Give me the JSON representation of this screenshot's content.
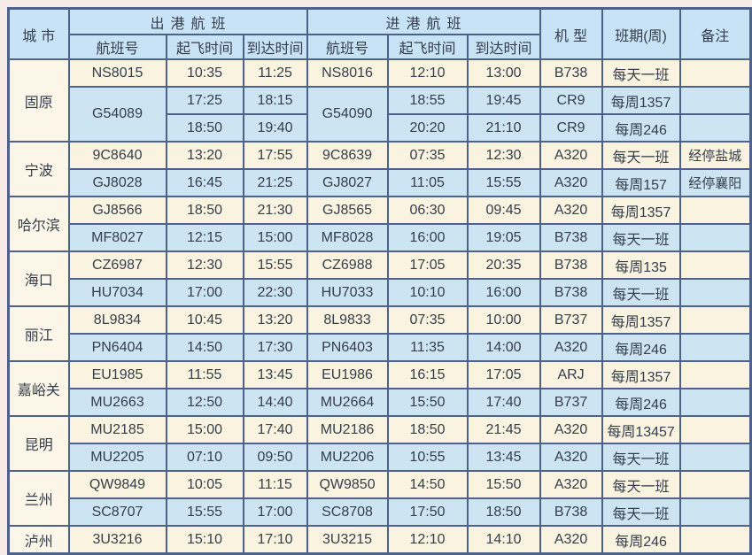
{
  "colors": {
    "border": "#4d6289",
    "header_bg": "#c9e3f6",
    "row_cream_bg": "#f9f3df",
    "row_blue_bg": "#cde4f3",
    "city_col_bg": "#fbf6e7",
    "text": "#343e4c",
    "page_bg": "#f5eae5"
  },
  "table": {
    "headers": {
      "city": "城市",
      "departure_group": "出港航班",
      "arrival_group": "进港航班",
      "flight_no": "航班号",
      "takeoff_time": "起飞时间",
      "arrival_time": "到达时间",
      "aircraft": "机型",
      "schedule": "班期(周)",
      "remarks": "备注"
    },
    "cities": [
      {
        "name": "固原",
        "flights": [
          {
            "out": [
              "NS8015",
              "10:35",
              "11:25"
            ],
            "in": [
              "NS8016",
              "12:10",
              "13:00"
            ],
            "type": "B738",
            "days": "每天一班",
            "note": ""
          },
          {
            "out": [
              "G54089",
              "17:25",
              "18:15"
            ],
            "in": [
              "G54090",
              "18:55",
              "19:45"
            ],
            "type": "CR9",
            "days": "每周1357",
            "note": "",
            "flight_rowspan": 2
          },
          {
            "out": [
              null,
              "18:50",
              "19:40"
            ],
            "in": [
              null,
              "20:20",
              "21:10"
            ],
            "type": "CR9",
            "days": "每周246",
            "note": ""
          }
        ]
      },
      {
        "name": "宁波",
        "flights": [
          {
            "out": [
              "9C8640",
              "13:20",
              "17:55"
            ],
            "in": [
              "9C8639",
              "07:35",
              "12:30"
            ],
            "type": "A320",
            "days": "每天一班",
            "note": "经停盐城"
          },
          {
            "out": [
              "GJ8028",
              "16:45",
              "21:25"
            ],
            "in": [
              "GJ8027",
              "11:05",
              "15:55"
            ],
            "type": "A320",
            "days": "每周157",
            "note": "经停襄阳"
          }
        ]
      },
      {
        "name": "哈尔滨",
        "flights": [
          {
            "out": [
              "GJ8566",
              "18:50",
              "21:30"
            ],
            "in": [
              "GJ8565",
              "06:30",
              "09:45"
            ],
            "type": "A320",
            "days": "每周1357",
            "note": ""
          },
          {
            "out": [
              "MF8027",
              "12:15",
              "15:00"
            ],
            "in": [
              "MF8028",
              "16:00",
              "19:05"
            ],
            "type": "B738",
            "days": "每天一班",
            "note": ""
          }
        ]
      },
      {
        "name": "海口",
        "flights": [
          {
            "out": [
              "CZ6987",
              "12:30",
              "15:55"
            ],
            "in": [
              "CZ6988",
              "17:05",
              "20:35"
            ],
            "type": "B738",
            "days": "每周135",
            "note": ""
          },
          {
            "out": [
              "HU7034",
              "17:00",
              "22:30"
            ],
            "in": [
              "HU7033",
              "10:10",
              "16:00"
            ],
            "type": "B738",
            "days": "每天一班",
            "note": ""
          }
        ]
      },
      {
        "name": "丽江",
        "flights": [
          {
            "out": [
              "8L9834",
              "10:45",
              "13:20"
            ],
            "in": [
              "8L9833",
              "07:35",
              "10:00"
            ],
            "type": "B737",
            "days": "每周1357",
            "note": ""
          },
          {
            "out": [
              "PN6404",
              "14:50",
              "17:30"
            ],
            "in": [
              "PN6403",
              "11:35",
              "14:00"
            ],
            "type": "A320",
            "days": "每周246",
            "note": ""
          }
        ]
      },
      {
        "name": "嘉峪关",
        "flights": [
          {
            "out": [
              "EU1985",
              "11:55",
              "13:45"
            ],
            "in": [
              "EU1986",
              "16:15",
              "17:05"
            ],
            "type": "ARJ",
            "days": "每周1357",
            "note": ""
          },
          {
            "out": [
              "MU2663",
              "12:50",
              "14:40"
            ],
            "in": [
              "MU2664",
              "15:50",
              "17:40"
            ],
            "type": "B737",
            "days": "每周246",
            "note": ""
          }
        ]
      },
      {
        "name": "昆明",
        "flights": [
          {
            "out": [
              "MU2185",
              "15:00",
              "17:40"
            ],
            "in": [
              "MU2186",
              "18:50",
              "21:45"
            ],
            "type": "A320",
            "days": "每周13457",
            "note": ""
          },
          {
            "out": [
              "MU2205",
              "07:10",
              "09:50"
            ],
            "in": [
              "MU2206",
              "10:55",
              "13:45"
            ],
            "type": "A320",
            "days": "每天一班",
            "note": ""
          }
        ]
      },
      {
        "name": "兰州",
        "flights": [
          {
            "out": [
              "QW9849",
              "10:05",
              "11:15"
            ],
            "in": [
              "QW9850",
              "14:50",
              "15:50"
            ],
            "type": "A320",
            "days": "每天一班",
            "note": ""
          },
          {
            "out": [
              "SC8707",
              "15:55",
              "17:00"
            ],
            "in": [
              "SC8708",
              "17:50",
              "18:50"
            ],
            "type": "B738",
            "days": "每天一班",
            "note": ""
          }
        ]
      },
      {
        "name": "泸州",
        "flights": [
          {
            "out": [
              "3U3216",
              "15:10",
              "17:10"
            ],
            "in": [
              "3U3215",
              "12:10",
              "14:10"
            ],
            "type": "A320",
            "days": "每周246",
            "note": ""
          }
        ]
      }
    ]
  }
}
